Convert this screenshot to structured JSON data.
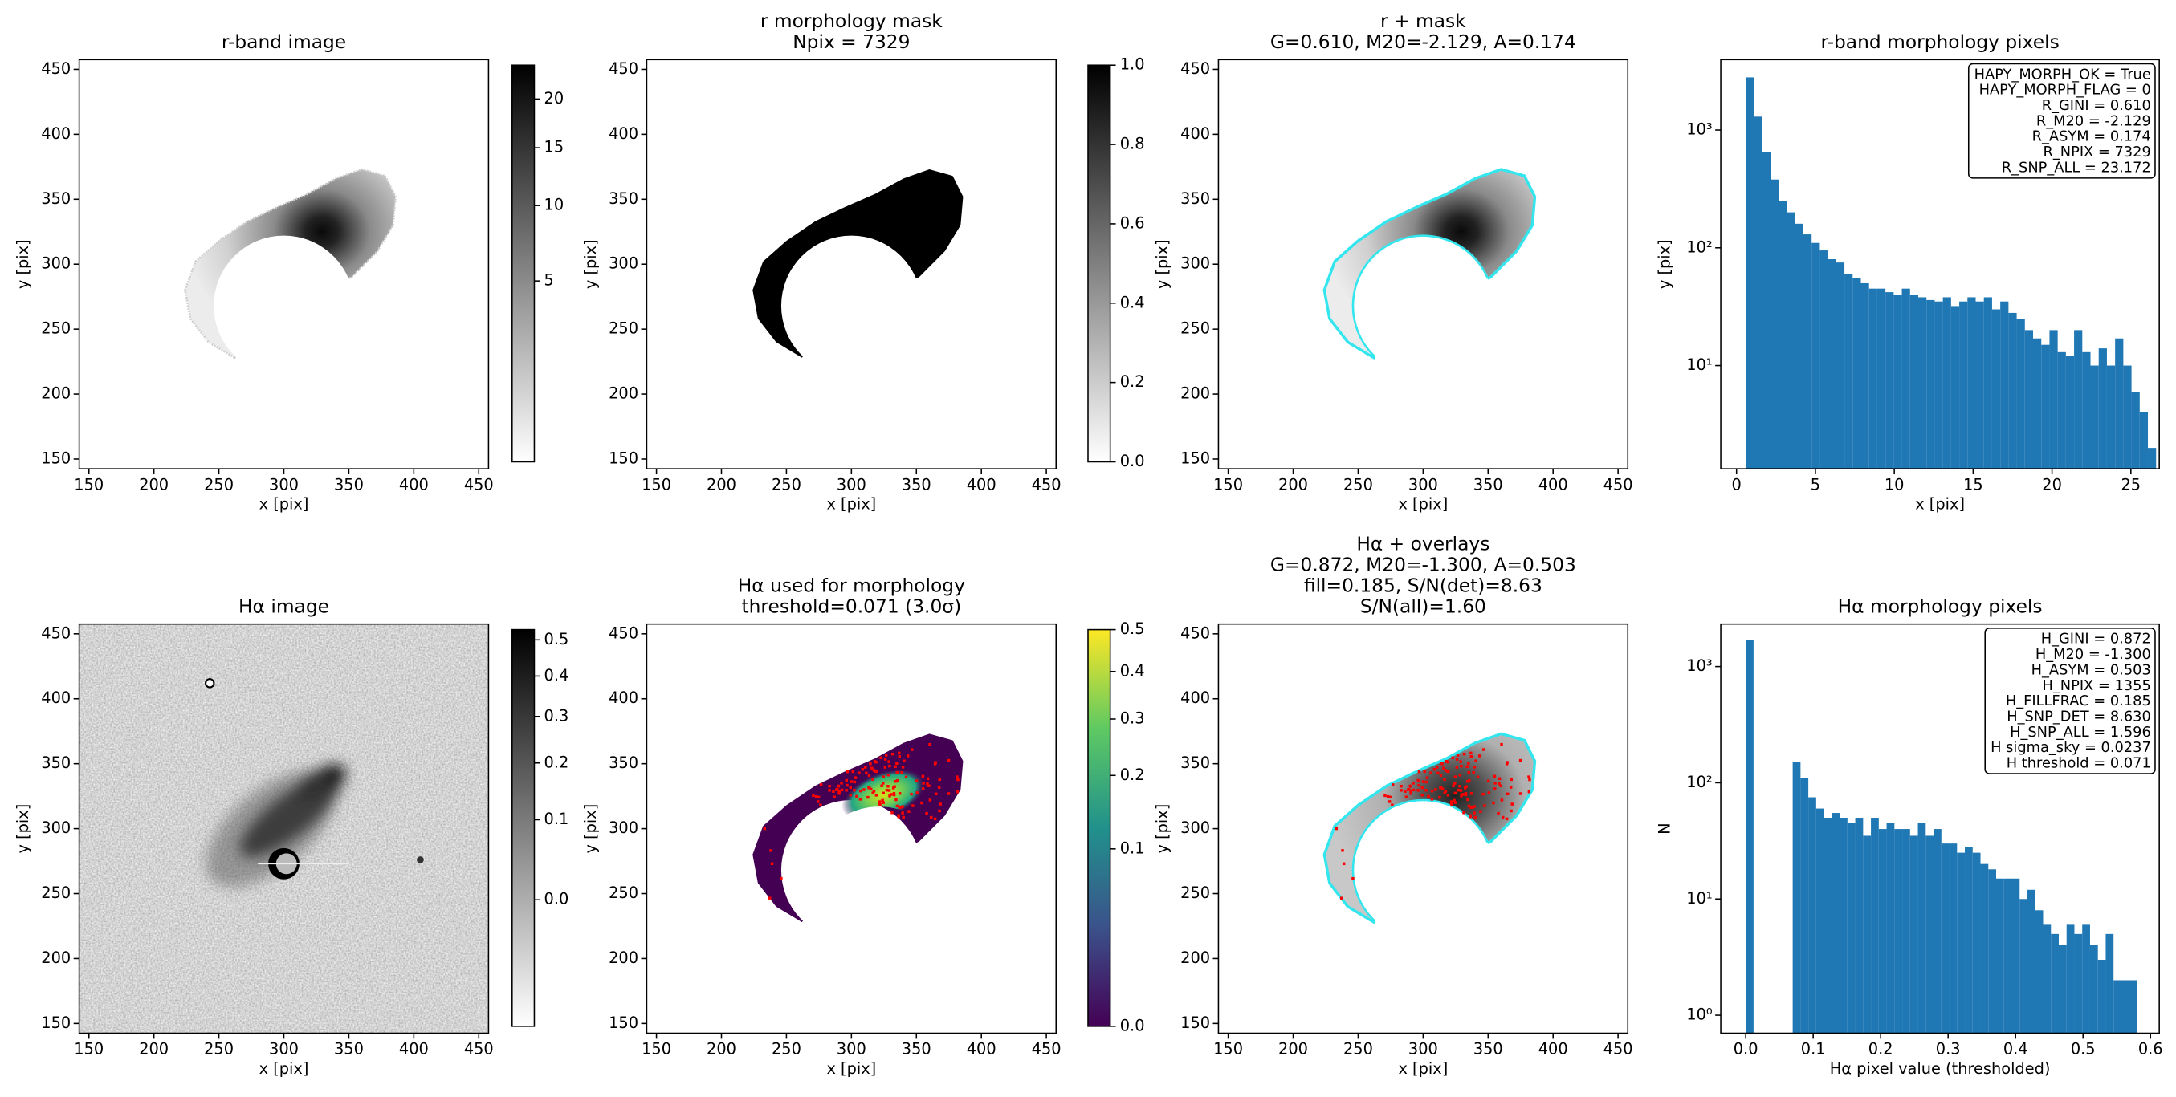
{
  "chart_data": [
    {
      "type": "image",
      "title": [
        "r-band image"
      ],
      "xlabel": "x [pix]",
      "ylabel": "y [pix]",
      "xlim": [
        142.5,
        457.5
      ],
      "ylim": [
        142.5,
        457.5
      ],
      "xticks": [
        150,
        200,
        250,
        300,
        350,
        400,
        450
      ],
      "yticks": [
        150,
        200,
        250,
        300,
        350,
        400,
        450
      ],
      "colorbar": {
        "cmap": "gray_r",
        "scale": "sqrt",
        "clim": [
          0.04,
          23.9
        ],
        "ticks": [
          5,
          10,
          15,
          20
        ]
      }
    },
    {
      "type": "image",
      "title": [
        "r morphology mask",
        "Npix = 7329"
      ],
      "xlabel": "x [pix]",
      "ylabel": "y [pix]",
      "xlim": [
        142.5,
        457.5
      ],
      "ylim": [
        142.5,
        457.5
      ],
      "xticks": [
        150,
        200,
        250,
        300,
        350,
        400,
        450
      ],
      "yticks": [
        150,
        200,
        250,
        300,
        350,
        400,
        450
      ],
      "colorbar": {
        "cmap": "gray_r",
        "scale": "linear",
        "clim": [
          0,
          1
        ],
        "ticks": [
          {
            "value": 0,
            "label": "0.0"
          },
          0.2,
          0.4,
          0.6,
          0.8,
          {
            "value": 1,
            "label": "1.0"
          }
        ]
      }
    },
    {
      "type": "image",
      "title": [
        "r + mask",
        "G=0.610, M20=-2.129, A=0.174"
      ],
      "xlabel": "x [pix]",
      "ylabel": "y [pix]",
      "xlim": [
        142.5,
        457.5
      ],
      "ylim": [
        142.5,
        457.5
      ],
      "xticks": [
        150,
        200,
        250,
        300,
        350,
        400,
        450
      ],
      "yticks": [
        150,
        200,
        250,
        300,
        350,
        400,
        450
      ]
    },
    {
      "type": "histogram",
      "title": [
        "r-band morphology pixels"
      ],
      "xlabel": "x [pix]",
      "ylabel": "y [pix]",
      "color": "#1f77b4",
      "log_y": true,
      "bins": [
        0.6,
        1.12,
        1.64,
        2.16,
        2.68,
        3.2,
        3.72,
        4.24,
        4.76,
        5.28,
        5.8,
        6.32,
        6.84,
        7.36,
        7.88,
        8.4,
        8.92,
        9.44,
        9.96,
        10.48,
        11,
        11.52,
        12.04,
        12.56,
        13.08,
        13.6,
        14.12,
        14.64,
        15.16,
        15.68,
        16.2,
        16.72,
        17.24,
        17.76,
        18.28,
        18.8,
        19.32,
        19.84,
        20.36,
        20.88,
        21.4,
        21.92,
        22.44,
        22.96,
        23.48,
        24,
        24.52,
        25.04,
        25.56,
        26.08,
        26.6
      ],
      "values": [
        2800,
        1300,
        650,
        380,
        250,
        200,
        160,
        130,
        110,
        95,
        80,
        75,
        60,
        55,
        50,
        45,
        45,
        42,
        40,
        45,
        40,
        38,
        36,
        35,
        38,
        32,
        35,
        38,
        35,
        38,
        30,
        35,
        28,
        25,
        20,
        17,
        15,
        20,
        13,
        12,
        20,
        13,
        10,
        14,
        10,
        17,
        10,
        6,
        4,
        2
      ],
      "xlim": [
        -1.0,
        26.8
      ],
      "ylim": [
        1.33,
        3960
      ],
      "xticks": [
        0,
        5,
        10,
        15,
        20,
        25
      ],
      "yticks": [
        {
          "value": 10,
          "label": "10¹"
        },
        {
          "value": 100,
          "label": "10²"
        },
        {
          "value": 1000,
          "label": "10³"
        }
      ],
      "annotation_lines": [
        "HAPY_MORPH_OK = True",
        "HAPY_MORPH_FLAG = 0",
        "R_GINI = 0.610",
        "R_M20 = -2.129",
        "R_ASYM = 0.174",
        "R_NPIX = 7329",
        "R_SNP_ALL = 23.172"
      ]
    },
    {
      "type": "image",
      "title": [
        "Hα image"
      ],
      "xlabel": "x [pix]",
      "ylabel": "y [pix]",
      "xlim": [
        142.5,
        457.5
      ],
      "ylim": [
        142.5,
        457.5
      ],
      "xticks": [
        150,
        200,
        250,
        300,
        350,
        400,
        450
      ],
      "yticks": [
        150,
        200,
        250,
        300,
        350,
        400,
        450
      ],
      "colorbar": {
        "cmap": "gray_r",
        "scale": "sqrt",
        "clim": [
          -0.06,
          0.53
        ],
        "ticks": [
          {
            "value": 0,
            "label": "0.0"
          },
          0.1,
          0.2,
          0.3,
          0.4,
          0.5
        ]
      }
    },
    {
      "type": "image",
      "title": [
        "Hα used for morphology",
        "threshold=0.071 (3.0σ)"
      ],
      "xlabel": "x [pix]",
      "ylabel": "y [pix]",
      "xlim": [
        142.5,
        457.5
      ],
      "ylim": [
        142.5,
        457.5
      ],
      "xticks": [
        150,
        200,
        250,
        300,
        350,
        400,
        450
      ],
      "yticks": [
        150,
        200,
        250,
        300,
        350,
        400,
        450
      ],
      "colorbar": {
        "cmap": "viridis",
        "scale": "sqrt",
        "clim": [
          0,
          0.5
        ],
        "ticks": [
          {
            "value": 0,
            "label": "0.0"
          },
          0.1,
          0.2,
          0.3,
          0.4,
          0.5
        ]
      }
    },
    {
      "type": "image",
      "title": [
        "Hα + overlays",
        "G=0.872, M20=-1.300, A=0.503",
        "fill=0.185, S/N(det)=8.63",
        "S/N(all)=1.60"
      ],
      "xlabel": "x [pix]",
      "ylabel": "y [pix]",
      "xlim": [
        142.5,
        457.5
      ],
      "ylim": [
        142.5,
        457.5
      ],
      "xticks": [
        150,
        200,
        250,
        300,
        350,
        400,
        450
      ],
      "yticks": [
        150,
        200,
        250,
        300,
        350,
        400,
        450
      ]
    },
    {
      "type": "histogram",
      "title": [
        "Hα morphology pixels"
      ],
      "xlabel": "Hα pixel value (thresholded)",
      "ylabel": "N",
      "color": "#1f77b4",
      "log_y": true,
      "bins": [
        0,
        0.0116,
        0.0232,
        0.0348,
        0.0464,
        0.058,
        0.0696,
        0.0812,
        0.0928,
        0.1044,
        0.116,
        0.1276,
        0.1392,
        0.1508,
        0.1624,
        0.174,
        0.1856,
        0.1972,
        0.2088,
        0.2204,
        0.232,
        0.2436,
        0.2552,
        0.2668,
        0.2784,
        0.29,
        0.3016,
        0.3132,
        0.3248,
        0.3364,
        0.348,
        0.3596,
        0.3712,
        0.3828,
        0.3944,
        0.406,
        0.4176,
        0.4292,
        0.4408,
        0.4524,
        0.464,
        0.4756,
        0.4872,
        0.4988,
        0.5104,
        0.522,
        0.5336,
        0.5452,
        0.5568,
        0.5684,
        0.58
      ],
      "values": [
        1700,
        0,
        0,
        0,
        0,
        0,
        150,
        110,
        75,
        60,
        50,
        55,
        50,
        45,
        50,
        35,
        50,
        40,
        45,
        40,
        40,
        35,
        45,
        35,
        40,
        30,
        30,
        25,
        28,
        25,
        20,
        18,
        15,
        15,
        15,
        10,
        12,
        8,
        6,
        5,
        4,
        6,
        5,
        6,
        4,
        3,
        5,
        2,
        2,
        2
      ],
      "xlim": [
        -0.037,
        0.613
      ],
      "ylim": [
        0.7,
        2320
      ],
      "xticks": [
        {
          "value": 0,
          "label": "0.0"
        },
        0.1,
        0.2,
        0.3,
        0.4,
        0.5,
        0.6
      ],
      "yticks": [
        {
          "value": 1,
          "label": "10⁰"
        },
        {
          "value": 10,
          "label": "10¹"
        },
        {
          "value": 100,
          "label": "10²"
        },
        {
          "value": 1000,
          "label": "10³"
        }
      ],
      "annotation_lines": [
        "H_GINI = 0.872",
        "H_M20 = -1.300",
        "H_ASYM = 0.503",
        "H_NPIX = 1355",
        "H_FILLFRAC = 0.185",
        "H_SNP_DET = 8.630",
        "H_SNP_ALL = 1.596",
        "H sigma_sky = 0.0237",
        "H threshold = 0.071"
      ]
    }
  ]
}
